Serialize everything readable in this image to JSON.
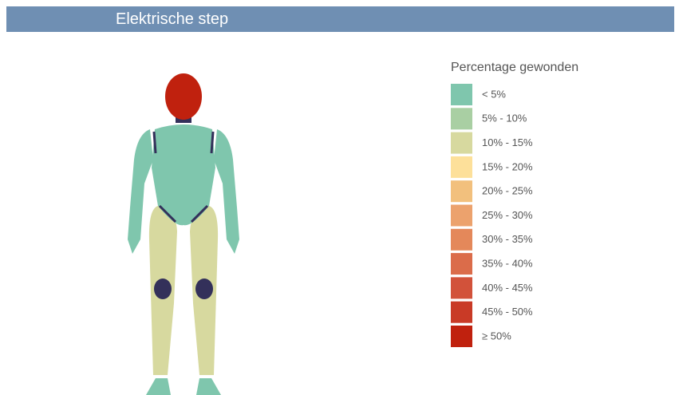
{
  "header": {
    "title": "Elektrische step"
  },
  "legend": {
    "title": "Percentage gewonden",
    "items": [
      {
        "label": "< 5%",
        "color": "#7fc6ad"
      },
      {
        "label": "5% - 10%",
        "color": "#a9cfa3"
      },
      {
        "label": "10% - 15%",
        "color": "#d7d99f"
      },
      {
        "label": "15% - 20%",
        "color": "#fde09a"
      },
      {
        "label": "20% - 25%",
        "color": "#f2c07d"
      },
      {
        "label": "25% - 30%",
        "color": "#eca26d"
      },
      {
        "label": "30% - 35%",
        "color": "#e4885a"
      },
      {
        "label": "35% - 40%",
        "color": "#db6c4a"
      },
      {
        "label": "40% - 45%",
        "color": "#d2523a"
      },
      {
        "label": "45% - 50%",
        "color": "#c93a26"
      },
      {
        "label": "≥ 50%",
        "color": "#c0210e"
      }
    ]
  }
}
